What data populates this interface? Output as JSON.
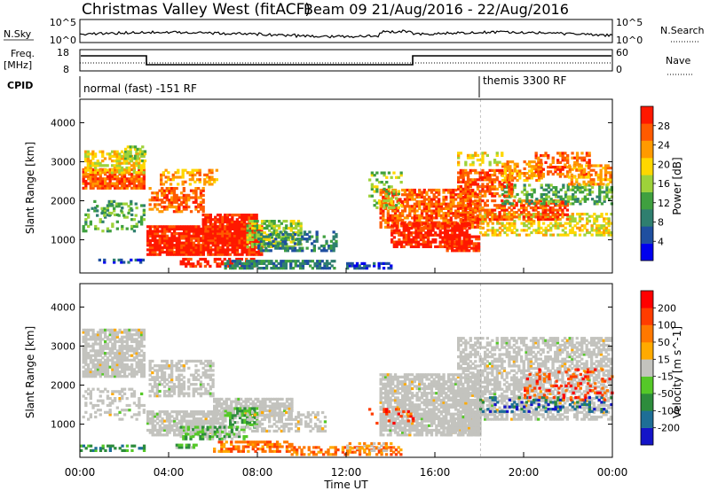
{
  "header": {
    "station": "Christmas Valley West (fitACF)",
    "beam_info": "Beam 09  21/Aug/2016 - 22/Aug/2016"
  },
  "top_panels": {
    "nsky_label": "N.Sky",
    "nsky_ticks": [
      "10^5",
      "10^0"
    ],
    "nsearch_label": "N.Search",
    "nsearch_ticks": [
      "10^5",
      "10^0"
    ],
    "freq_label_1": "Freq.",
    "freq_label_2": "[MHz]",
    "freq_ticks": [
      "18",
      "8"
    ],
    "nave_label": "Nave",
    "nave_ticks": [
      "60",
      "0"
    ],
    "cpid_label": "CPID",
    "cpid_1": "normal (fast) -151 RF",
    "cpid_2": "themis 3300 RF"
  },
  "chart_data": [
    {
      "type": "heatmap",
      "title": "",
      "ylabel": "Slant Range [km]",
      "ylim": [
        150,
        4600
      ],
      "yticks": [
        "4000",
        "3000",
        "2000",
        "1000"
      ],
      "colorbar_label": "Power [dB]",
      "colorbar_ticks": [
        "28",
        "24",
        "20",
        "16",
        "12",
        "8",
        "4"
      ],
      "colors": [
        "#0000ee",
        "#1f4fa0",
        "#2f7f6f",
        "#3fa03f",
        "#9ed23a",
        "#ffd700",
        "#ff9a00",
        "#ff5a00",
        "#ff1800"
      ]
    },
    {
      "type": "heatmap",
      "title": "",
      "ylabel": "Slant Range [km]",
      "ylim": [
        150,
        4600
      ],
      "yticks": [
        "4000",
        "3000",
        "2000",
        "1000"
      ],
      "colorbar_label": "Velocity [m s^-1]",
      "colorbar_ticks": [
        "200",
        "100",
        "50",
        "15",
        "-15",
        "-50",
        "-100",
        "-200"
      ],
      "colors": [
        "#1414c8",
        "#1e6e96",
        "#2d8c3c",
        "#55c828",
        "#c3c3be",
        "#ffaa00",
        "#ff7800",
        "#ff3c00",
        "#ff0000"
      ],
      "ground_scatter_color": "#c3c3be"
    }
  ],
  "x_axis": {
    "xlabel": "Time UT",
    "xlim_hours": [
      0,
      24
    ],
    "ticks": [
      "00:00",
      "04:00",
      "08:00",
      "12:00",
      "16:00",
      "20:00",
      "00:00"
    ]
  }
}
